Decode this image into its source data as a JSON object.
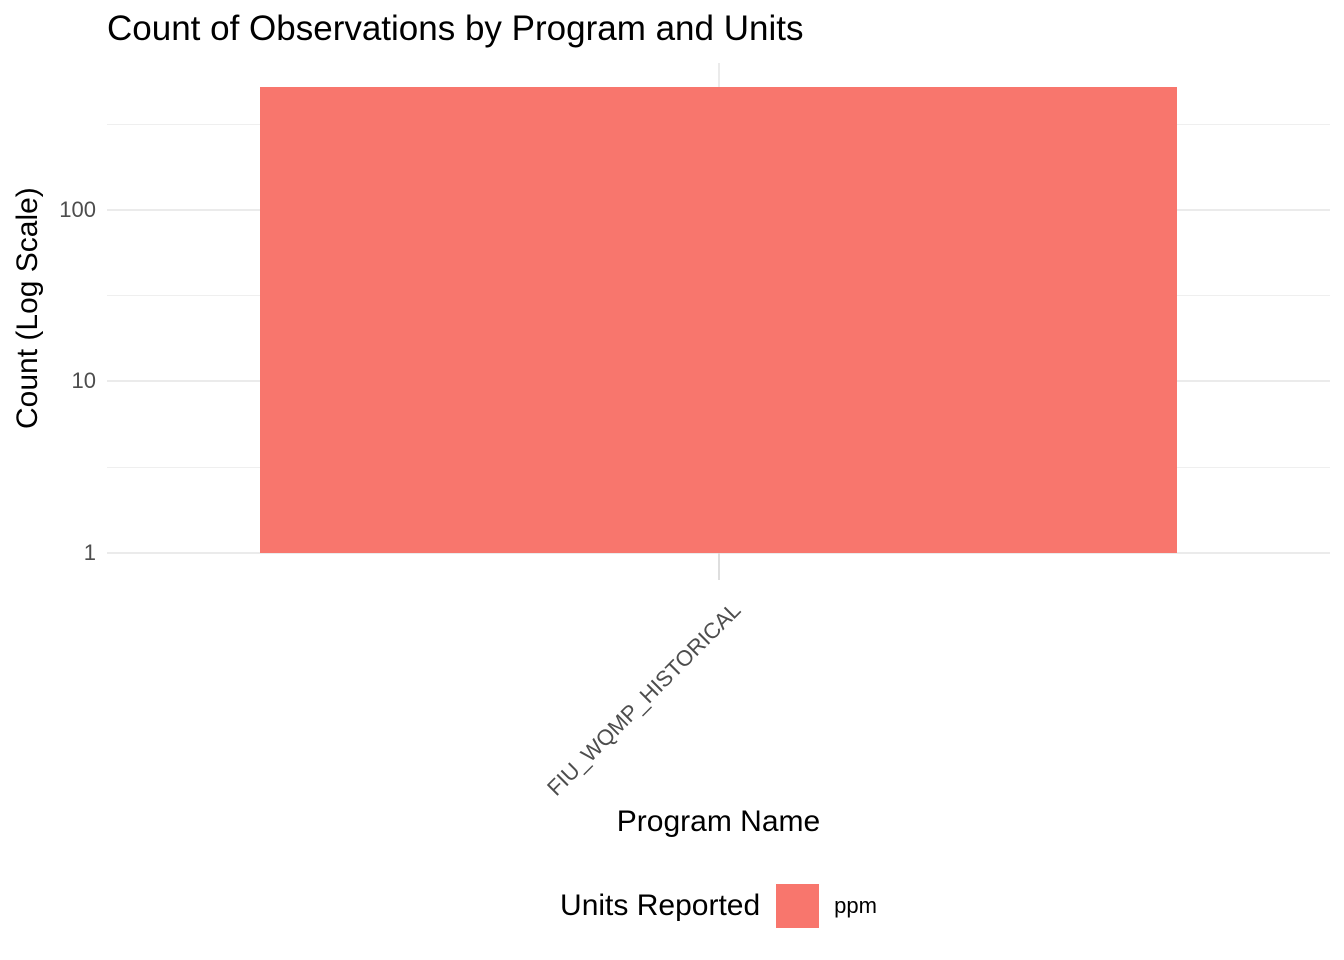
{
  "chart_data": {
    "type": "bar",
    "title": "Count of Observations by Program and Units",
    "xlabel": "Program Name",
    "ylabel": "Count (Log Scale)",
    "legend_title": "Units Reported",
    "legend_position": "bottom",
    "categories": [
      "FIU_WQMP_HISTORICAL"
    ],
    "series": [
      {
        "name": "ppm",
        "values": [
          520
        ],
        "color": "#F8766D"
      }
    ],
    "y_scale": "log10",
    "y_ticks": [
      1,
      10,
      100
    ],
    "y_tick_labels": [
      "1",
      "10",
      "100"
    ],
    "ylim": [
      1,
      719
    ],
    "grid": true
  },
  "colors": {
    "bar": "#F8766D",
    "grid_major": "#EBEBEB",
    "grid_minor": "#EFEFEF",
    "axis_tick_mark": "#DEDEDE",
    "axis_text": "#4D4D4D",
    "title_text": "#000000",
    "background": "#FFFFFF"
  }
}
